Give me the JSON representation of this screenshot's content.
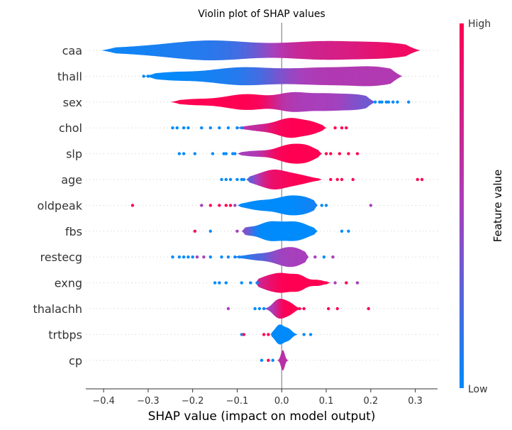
{
  "chart_data": {
    "type": "violin",
    "title": "Violin plot of SHAP values",
    "xlabel": "SHAP value (impact on model output)",
    "xlim": [
      -0.44,
      0.35
    ],
    "x_ticks": [
      -0.4,
      -0.3,
      -0.2,
      -0.1,
      0.0,
      0.1,
      0.2,
      0.3
    ],
    "x_tick_labels": [
      "−0.4",
      "−0.3",
      "−0.2",
      "−0.1",
      "0.0",
      "0.1",
      "0.2",
      "0.3"
    ],
    "colorbar": {
      "label": "Feature value",
      "high": "High",
      "low": "Low",
      "high_color": "#ff0052",
      "mid_color": "#a83fbc",
      "low_color": "#008bfb"
    },
    "features": [
      {
        "name": "caa",
        "min": -0.405,
        "max": 0.31,
        "lean": 0.55,
        "bumps": [
          [
            -0.3,
            0.03,
            0.12,
            0.35
          ],
          [
            -0.15,
            0.12,
            0.09,
            0.9
          ],
          [
            0.1,
            0.75,
            0.1,
            1.0
          ],
          [
            0.25,
            1.0,
            0.06,
            0.5
          ]
        ],
        "points": []
      },
      {
        "name": "thall",
        "min": -0.31,
        "max": 0.27,
        "lean": 0.5,
        "bumps": [
          [
            -0.25,
            0.0,
            0.05,
            0.4
          ],
          [
            -0.1,
            0.05,
            0.07,
            0.9
          ],
          [
            0.1,
            0.55,
            0.1,
            1.0
          ],
          [
            0.22,
            0.55,
            0.05,
            0.6
          ]
        ],
        "points": [
          {
            "x": -0.31,
            "c": 0.0
          },
          {
            "x": -0.3,
            "c": 0.0
          }
        ]
      },
      {
        "name": "sex",
        "min": -0.25,
        "max": 0.21,
        "lean": 0.45,
        "bumps": [
          [
            -0.2,
            1.0,
            0.04,
            0.3
          ],
          [
            -0.08,
            1.0,
            0.05,
            0.9
          ],
          [
            0.02,
            0.5,
            0.03,
            0.6
          ],
          [
            0.1,
            0.5,
            0.06,
            1.0
          ],
          [
            0.18,
            0.2,
            0.03,
            0.4
          ]
        ],
        "points": [
          {
            "x": 0.21,
            "c": 0.0
          },
          {
            "x": 0.22,
            "c": 0.0
          },
          {
            "x": 0.225,
            "c": 0.0
          },
          {
            "x": 0.235,
            "c": 0.0
          },
          {
            "x": 0.24,
            "c": 0.0
          },
          {
            "x": 0.25,
            "c": 0.0
          },
          {
            "x": 0.26,
            "c": 0.0
          },
          {
            "x": 0.285,
            "c": 0.0
          }
        ]
      },
      {
        "name": "chol",
        "min": -0.1,
        "max": 0.1,
        "lean": 0.6,
        "bumps": [
          [
            -0.05,
            0.6,
            0.03,
            0.3
          ],
          [
            0.02,
            1.0,
            0.03,
            1.0
          ],
          [
            0.07,
            1.0,
            0.02,
            0.4
          ]
        ],
        "points": [
          {
            "x": -0.245,
            "c": 0.0
          },
          {
            "x": -0.235,
            "c": 0.0
          },
          {
            "x": -0.22,
            "c": 0.0
          },
          {
            "x": -0.21,
            "c": 0.0
          },
          {
            "x": -0.18,
            "c": 0.0
          },
          {
            "x": -0.16,
            "c": 0.0
          },
          {
            "x": -0.14,
            "c": 0.0
          },
          {
            "x": -0.12,
            "c": 0.0
          },
          {
            "x": -0.1,
            "c": 0.0
          },
          {
            "x": -0.09,
            "c": 0.0
          },
          {
            "x": 0.12,
            "c": 1.0
          },
          {
            "x": 0.135,
            "c": 1.0
          },
          {
            "x": 0.145,
            "c": 1.0
          }
        ]
      },
      {
        "name": "slp",
        "min": -0.1,
        "max": 0.09,
        "lean": 0.6,
        "bumps": [
          [
            -0.06,
            0.5,
            0.03,
            0.3
          ],
          [
            0.02,
            1.0,
            0.03,
            1.0
          ],
          [
            0.06,
            1.0,
            0.02,
            0.5
          ]
        ],
        "points": [
          {
            "x": -0.23,
            "c": 0.0
          },
          {
            "x": -0.22,
            "c": 0.0
          },
          {
            "x": -0.195,
            "c": 0.0
          },
          {
            "x": -0.155,
            "c": 0.0
          },
          {
            "x": -0.13,
            "c": 0.0
          },
          {
            "x": -0.125,
            "c": 0.0
          },
          {
            "x": -0.11,
            "c": 0.0
          },
          {
            "x": -0.105,
            "c": 0.0
          },
          {
            "x": 0.1,
            "c": 1.0
          },
          {
            "x": 0.11,
            "c": 1.0
          },
          {
            "x": 0.13,
            "c": 1.0
          },
          {
            "x": 0.15,
            "c": 1.0
          },
          {
            "x": 0.17,
            "c": 1.0
          }
        ]
      },
      {
        "name": "age",
        "min": -0.08,
        "max": 0.09,
        "lean": 0.3,
        "bumps": [
          [
            -0.06,
            0.0,
            0.02,
            0.3
          ],
          [
            -0.02,
            0.9,
            0.025,
            1.0
          ],
          [
            0.03,
            1.0,
            0.03,
            0.6
          ]
        ],
        "points": [
          {
            "x": -0.135,
            "c": 0.0
          },
          {
            "x": -0.125,
            "c": 0.0
          },
          {
            "x": -0.115,
            "c": 0.0
          },
          {
            "x": -0.1,
            "c": 0.0
          },
          {
            "x": -0.09,
            "c": 0.0
          },
          {
            "x": -0.085,
            "c": 0.0
          },
          {
            "x": 0.11,
            "c": 1.0
          },
          {
            "x": 0.125,
            "c": 1.0
          },
          {
            "x": 0.135,
            "c": 1.0
          },
          {
            "x": 0.16,
            "c": 1.0
          },
          {
            "x": 0.305,
            "c": 1.0
          },
          {
            "x": 0.315,
            "c": 1.0
          }
        ]
      },
      {
        "name": "oldpeak",
        "min": -0.1,
        "max": 0.08,
        "lean": 0.05,
        "bumps": [
          [
            -0.05,
            0.0,
            0.03,
            0.5
          ],
          [
            0.02,
            0.0,
            0.03,
            1.0
          ],
          [
            0.06,
            0.1,
            0.02,
            0.4
          ]
        ],
        "points": [
          {
            "x": -0.335,
            "c": 1.0
          },
          {
            "x": -0.18,
            "c": 0.5
          },
          {
            "x": -0.16,
            "c": 1.0
          },
          {
            "x": -0.14,
            "c": 1.0
          },
          {
            "x": -0.125,
            "c": 1.0
          },
          {
            "x": -0.115,
            "c": 1.0
          },
          {
            "x": -0.105,
            "c": 0.5
          },
          {
            "x": 0.09,
            "c": 0.0
          },
          {
            "x": 0.1,
            "c": 0.0
          },
          {
            "x": 0.2,
            "c": 0.5
          }
        ]
      },
      {
        "name": "fbs",
        "min": -0.09,
        "max": 0.08,
        "lean": 0.0,
        "bumps": [
          [
            -0.08,
            0.5,
            0.015,
            0.3
          ],
          [
            -0.03,
            0.0,
            0.025,
            0.9
          ],
          [
            0.03,
            0.0,
            0.03,
            1.0
          ]
        ],
        "points": [
          {
            "x": -0.195,
            "c": 1.0
          },
          {
            "x": -0.16,
            "c": 0.0
          },
          {
            "x": -0.1,
            "c": 0.5
          },
          {
            "x": 0.135,
            "c": 0.0
          },
          {
            "x": 0.15,
            "c": 0.0
          }
        ]
      },
      {
        "name": "restecg",
        "min": -0.11,
        "max": 0.06,
        "lean": 0.4,
        "bumps": [
          [
            -0.05,
            0.2,
            0.03,
            0.4
          ],
          [
            0.01,
            0.5,
            0.025,
            1.0
          ],
          [
            0.04,
            0.5,
            0.02,
            0.5
          ]
        ],
        "points": [
          {
            "x": -0.245,
            "c": 0.0
          },
          {
            "x": -0.23,
            "c": 0.0
          },
          {
            "x": -0.22,
            "c": 0.0
          },
          {
            "x": -0.21,
            "c": 0.0
          },
          {
            "x": -0.2,
            "c": 0.0
          },
          {
            "x": -0.19,
            "c": 0.5
          },
          {
            "x": -0.175,
            "c": 0.5
          },
          {
            "x": -0.16,
            "c": 0.0
          },
          {
            "x": -0.135,
            "c": 0.0
          },
          {
            "x": -0.12,
            "c": 0.0
          },
          {
            "x": -0.105,
            "c": 0.0
          },
          {
            "x": -0.095,
            "c": 0.0
          },
          {
            "x": -0.085,
            "c": 0.0
          },
          {
            "x": -0.075,
            "c": 0.0
          },
          {
            "x": 0.075,
            "c": 0.5
          },
          {
            "x": 0.095,
            "c": 0.0
          },
          {
            "x": 0.115,
            "c": 0.5
          }
        ]
      },
      {
        "name": "exng",
        "min": -0.06,
        "max": 0.11,
        "lean": 0.9,
        "bumps": [
          [
            -0.04,
            0.6,
            0.02,
            0.4
          ],
          [
            0.0,
            1.0,
            0.025,
            1.0
          ],
          [
            0.04,
            1.0,
            0.015,
            0.6
          ],
          [
            0.08,
            1.0,
            0.015,
            0.3
          ]
        ],
        "points": [
          {
            "x": -0.15,
            "c": 0.0
          },
          {
            "x": -0.14,
            "c": 0.0
          },
          {
            "x": -0.125,
            "c": 0.0
          },
          {
            "x": -0.09,
            "c": 0.0
          },
          {
            "x": -0.07,
            "c": 0.0
          },
          {
            "x": -0.055,
            "c": 0.0
          },
          {
            "x": 0.09,
            "c": 1.0
          },
          {
            "x": 0.1,
            "c": 1.0
          },
          {
            "x": 0.12,
            "c": 0.5
          },
          {
            "x": 0.145,
            "c": 1.0
          },
          {
            "x": 0.17,
            "c": 0.5
          }
        ]
      },
      {
        "name": "thalachh",
        "min": -0.05,
        "max": 0.05,
        "lean": 0.8,
        "bumps": [
          [
            -0.015,
            0.3,
            0.01,
            0.5
          ],
          [
            0.0,
            1.0,
            0.012,
            1.0
          ],
          [
            0.02,
            1.0,
            0.01,
            0.5
          ]
        ],
        "points": [
          {
            "x": -0.12,
            "c": 0.5
          },
          {
            "x": -0.06,
            "c": 0.0
          },
          {
            "x": -0.05,
            "c": 0.0
          },
          {
            "x": -0.04,
            "c": 0.0
          },
          {
            "x": 0.04,
            "c": 1.0
          },
          {
            "x": 0.05,
            "c": 1.0
          },
          {
            "x": 0.105,
            "c": 1.0
          },
          {
            "x": 0.125,
            "c": 1.0
          },
          {
            "x": 0.195,
            "c": 1.0
          }
        ]
      },
      {
        "name": "trtbps",
        "min": -0.025,
        "max": 0.035,
        "lean": 0.0,
        "bumps": [
          [
            -0.005,
            0.0,
            0.01,
            1.0
          ],
          [
            0.015,
            0.0,
            0.008,
            0.5
          ]
        ],
        "points": [
          {
            "x": -0.09,
            "c": 0.0
          },
          {
            "x": -0.085,
            "c": 1.0
          },
          {
            "x": -0.04,
            "c": 1.0
          },
          {
            "x": -0.03,
            "c": 1.0
          },
          {
            "x": 0.05,
            "c": 0.0
          },
          {
            "x": 0.065,
            "c": 0.0
          }
        ]
      },
      {
        "name": "cp",
        "min": -0.01,
        "max": 0.015,
        "lean": 0.6,
        "bumps": [
          [
            0.002,
            0.6,
            0.004,
            1.0
          ]
        ],
        "points": [
          {
            "x": -0.045,
            "c": 0.0
          },
          {
            "x": -0.03,
            "c": 1.0
          },
          {
            "x": -0.02,
            "c": 0.0
          }
        ]
      }
    ]
  }
}
